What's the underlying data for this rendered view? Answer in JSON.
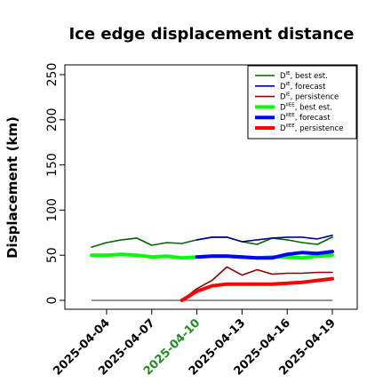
{
  "chart_data": {
    "type": "line",
    "title": "Ice edge displacement distance",
    "ylabel": "Displacement (km)",
    "xlabel": "",
    "ylim": [
      0,
      260
    ],
    "yticks": [
      0,
      50,
      100,
      150,
      200,
      250
    ],
    "x_tick_labels": [
      {
        "label": "2025-04-04",
        "color": "#000000"
      },
      {
        "label": "2025-04-07",
        "color": "#000000"
      },
      {
        "label": "2025-04-10",
        "color": "#228B22"
      },
      {
        "label": "2025-04-13",
        "color": "#000000"
      },
      {
        "label": "2025-04-16",
        "color": "#000000"
      },
      {
        "label": "2025-04-19",
        "color": "#000000"
      }
    ],
    "x": [
      "2025-04-03",
      "2025-04-04",
      "2025-04-05",
      "2025-04-06",
      "2025-04-07",
      "2025-04-08",
      "2025-04-09",
      "2025-04-10",
      "2025-04-11",
      "2025-04-12",
      "2025-04-13",
      "2025-04-14",
      "2025-04-15",
      "2025-04-16",
      "2025-04-17",
      "2025-04-18",
      "2025-04-19"
    ],
    "zero_line": {
      "color": "#555555",
      "value": 0
    },
    "series": [
      {
        "name": "D_best_est",
        "legend_main": "D",
        "legend_sup": "IE",
        "legend_rest": ", best est.",
        "color": "#006400",
        "width": 1.6,
        "values": [
          59,
          64,
          67,
          69,
          61,
          64,
          63,
          67,
          70,
          70,
          65,
          62,
          69,
          67,
          64,
          62,
          70
        ]
      },
      {
        "name": "D_forecast",
        "legend_main": "D",
        "legend_sup": "IE",
        "legend_rest": ", forecast",
        "color": "#00008B",
        "width": 1.6,
        "values": [
          null,
          null,
          null,
          null,
          null,
          null,
          null,
          67,
          70,
          70,
          65,
          67,
          69,
          70,
          70,
          68,
          72
        ]
      },
      {
        "name": "D_persistence",
        "legend_main": "D",
        "legend_sup": "IE",
        "legend_rest": ", persistence",
        "color": "#8B0000",
        "width": 1.6,
        "values": [
          null,
          null,
          null,
          null,
          null,
          null,
          0,
          13,
          22,
          37,
          28,
          34,
          29,
          30,
          30,
          31,
          31
        ]
      },
      {
        "name": "D_IIEE_best_est",
        "legend_main": "D",
        "legend_sup": "IIEE",
        "legend_rest": ", best est.",
        "color": "#00FF00",
        "width": 4,
        "values": [
          50,
          50,
          51,
          50,
          48,
          49,
          47,
          48,
          49,
          49,
          48,
          47,
          48,
          48,
          47,
          49,
          50
        ]
      },
      {
        "name": "D_IIEE_forecast",
        "legend_main": "D",
        "legend_sup": "IIEE",
        "legend_rest": ", forecast",
        "color": "#0000FF",
        "width": 4,
        "values": [
          null,
          null,
          null,
          null,
          null,
          null,
          null,
          48,
          49,
          49,
          48,
          47,
          47,
          51,
          53,
          52,
          54
        ]
      },
      {
        "name": "D_IIEE_persistence",
        "legend_main": "D",
        "legend_sup": "IIEE",
        "legend_rest": ", persistence",
        "color": "#FF0000",
        "width": 4,
        "values": [
          null,
          null,
          null,
          null,
          null,
          null,
          0,
          10,
          16,
          18,
          18,
          18,
          18,
          19,
          20,
          22,
          24
        ]
      }
    ],
    "legend_position": "top-right",
    "grid": false
  }
}
